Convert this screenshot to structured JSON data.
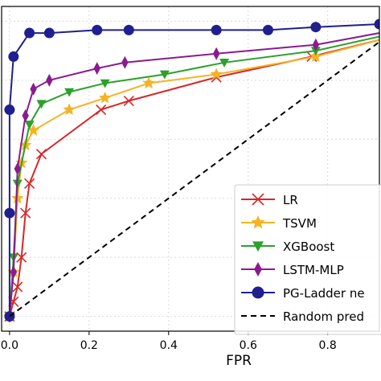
{
  "chart_data": {
    "type": "line",
    "xlabel": "FPR",
    "ylabel": "",
    "title": "",
    "xlim": [
      -0.02,
      0.93
    ],
    "ylim": [
      -0.05,
      1.05
    ],
    "x_ticks": [
      "0.0",
      "0.2",
      "0.4",
      "0.6",
      "0.8"
    ],
    "x_tick_values": [
      0.0,
      0.2,
      0.4,
      0.6,
      0.8
    ],
    "grid": true,
    "legend_position": "lower-right",
    "series": [
      {
        "name": "LR",
        "color": "#d62728",
        "marker": "x",
        "dashed": false,
        "x": [
          0.0,
          0.01,
          0.02,
          0.03,
          0.04,
          0.05,
          0.08,
          0.23,
          0.3,
          0.52,
          0.76,
          0.97
        ],
        "y": [
          0.0,
          0.05,
          0.1,
          0.2,
          0.35,
          0.45,
          0.55,
          0.7,
          0.73,
          0.81,
          0.88,
          0.95
        ]
      },
      {
        "name": "TSVM",
        "color": "#f5b324",
        "marker": "star",
        "dashed": false,
        "x": [
          0.0,
          0.01,
          0.02,
          0.03,
          0.04,
          0.06,
          0.15,
          0.24,
          0.35,
          0.52,
          0.77,
          0.97
        ],
        "y": [
          0.0,
          0.15,
          0.4,
          0.52,
          0.58,
          0.63,
          0.7,
          0.74,
          0.79,
          0.82,
          0.88,
          0.95
        ]
      },
      {
        "name": "XGBoost",
        "color": "#2ca02c",
        "marker": "triangle-down",
        "dashed": false,
        "x": [
          0.0,
          0.01,
          0.02,
          0.05,
          0.08,
          0.15,
          0.24,
          0.39,
          0.54,
          0.77,
          0.97
        ],
        "y": [
          0.0,
          0.2,
          0.45,
          0.65,
          0.72,
          0.76,
          0.79,
          0.82,
          0.86,
          0.9,
          0.96
        ]
      },
      {
        "name": "LSTM-MLP",
        "color": "#8b1b8f",
        "marker": "diamond",
        "dashed": false,
        "x": [
          0.0,
          0.01,
          0.02,
          0.04,
          0.06,
          0.1,
          0.22,
          0.29,
          0.52,
          0.77,
          0.97
        ],
        "y": [
          0.0,
          0.15,
          0.5,
          0.68,
          0.77,
          0.8,
          0.84,
          0.86,
          0.89,
          0.92,
          0.97
        ]
      },
      {
        "name": "PG-Ladder ne",
        "color": "#1f1f8f",
        "marker": "circle",
        "dashed": false,
        "x": [
          0.0,
          0.0,
          0.0,
          0.01,
          0.05,
          0.1,
          0.22,
          0.3,
          0.52,
          0.65,
          0.77,
          0.93
        ],
        "y": [
          0.0,
          0.35,
          0.7,
          0.88,
          0.96,
          0.96,
          0.97,
          0.97,
          0.97,
          0.97,
          0.98,
          0.99
        ]
      },
      {
        "name": "Random pred",
        "color": "#000000",
        "marker": "none",
        "dashed": true,
        "x": [
          0.0,
          1.0
        ],
        "y": [
          0.0,
          1.0
        ]
      }
    ]
  }
}
